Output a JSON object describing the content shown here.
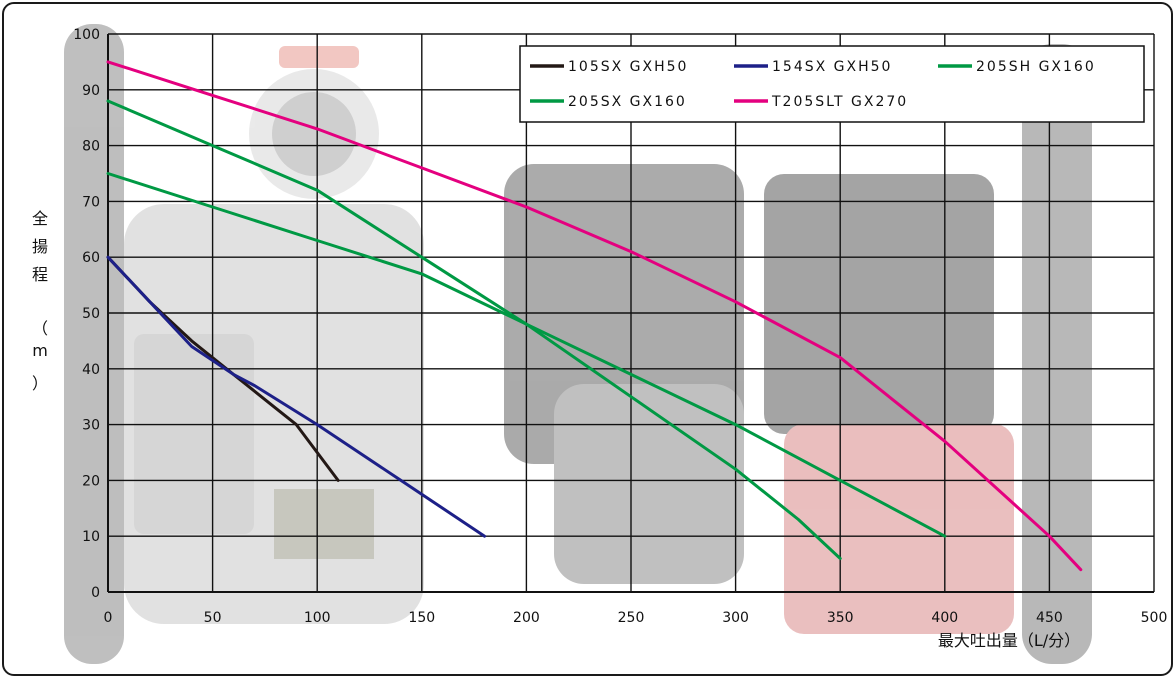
{
  "chart_data": {
    "type": "line",
    "title": "",
    "xlabel": "最大吐出量（L/分）",
    "ylabel_chars": [
      "全",
      "揚",
      "程",
      "（",
      "m",
      "）"
    ],
    "xlim": [
      0,
      500
    ],
    "ylim": [
      0,
      100
    ],
    "x_ticks": [
      0,
      50,
      100,
      150,
      200,
      250,
      300,
      350,
      400,
      450,
      500
    ],
    "y_ticks": [
      0,
      10,
      20,
      30,
      40,
      50,
      60,
      70,
      80,
      90,
      100
    ],
    "grid": true,
    "legend_position": "top-right",
    "series": [
      {
        "name": "105SX GXH50",
        "color": "#231815",
        "points": [
          [
            0,
            60
          ],
          [
            20,
            52
          ],
          [
            40,
            45
          ],
          [
            60,
            39
          ],
          [
            80,
            33
          ],
          [
            90,
            30
          ],
          [
            100,
            25
          ],
          [
            110,
            20
          ]
        ]
      },
      {
        "name": "154SX GXH50",
        "color": "#1d2088",
        "points": [
          [
            0,
            60
          ],
          [
            20,
            52
          ],
          [
            40,
            44
          ],
          [
            60,
            39
          ],
          [
            70,
            37
          ],
          [
            100,
            30
          ],
          [
            140,
            20
          ],
          [
            180,
            10
          ]
        ]
      },
      {
        "name": "205SH GX160",
        "color": "#009944",
        "points": [
          [
            0,
            88
          ],
          [
            50,
            80
          ],
          [
            100,
            72
          ],
          [
            150,
            60
          ],
          [
            200,
            48
          ],
          [
            250,
            35
          ],
          [
            300,
            22
          ],
          [
            330,
            13
          ],
          [
            350,
            6
          ]
        ]
      },
      {
        "name": "205SX GX160",
        "color": "#009944",
        "points": [
          [
            0,
            75
          ],
          [
            50,
            69
          ],
          [
            100,
            63
          ],
          [
            150,
            57
          ],
          [
            200,
            48
          ],
          [
            250,
            39
          ],
          [
            300,
            30
          ],
          [
            350,
            20
          ],
          [
            400,
            10
          ]
        ]
      },
      {
        "name": "T205SLT GX270",
        "color": "#e4007f",
        "points": [
          [
            0,
            95
          ],
          [
            50,
            89
          ],
          [
            100,
            83
          ],
          [
            150,
            76
          ],
          [
            200,
            69
          ],
          [
            250,
            61
          ],
          [
            300,
            52
          ],
          [
            350,
            42
          ],
          [
            400,
            27
          ],
          [
            450,
            10
          ],
          [
            465,
            4
          ]
        ]
      }
    ]
  }
}
